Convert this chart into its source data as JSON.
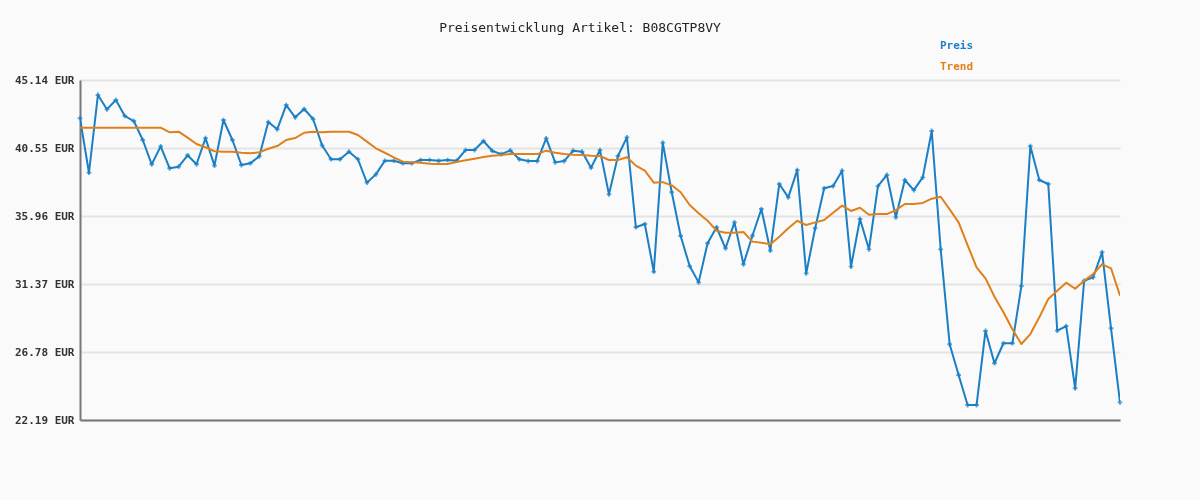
{
  "chart_data": {
    "type": "line",
    "title": "Preisentwicklung Artikel: B08CGTP8VY",
    "categories": [
      null,
      null,
      null,
      null,
      null,
      null,
      null,
      null,
      null,
      null,
      null,
      null,
      null,
      null,
      null,
      null,
      null,
      null,
      null,
      null,
      null,
      null,
      null,
      null,
      null,
      null,
      null,
      null,
      null,
      null,
      null,
      null,
      null,
      null,
      null,
      null,
      null,
      null,
      null,
      null,
      null,
      null,
      null,
      null,
      null,
      null,
      null,
      null,
      null,
      null,
      null,
      null,
      null,
      null,
      null,
      null,
      null,
      null,
      null,
      null,
      null,
      null,
      null,
      null,
      null,
      null,
      null,
      null,
      null,
      null,
      null,
      null,
      null,
      null,
      null,
      null,
      null,
      null,
      null,
      null,
      null,
      null,
      null,
      null,
      null,
      null,
      null,
      null,
      null,
      null,
      null,
      null,
      null,
      null,
      null,
      null,
      null,
      null,
      null,
      null,
      null,
      null,
      null,
      null,
      null,
      null,
      null,
      null,
      null,
      null,
      null,
      null,
      null,
      null,
      null,
      null,
      null
    ],
    "series": [
      {
        "name": "Preis",
        "color": "#1a7fc4",
        "marker": "cross",
        "values": [
          42.56,
          38.88,
          44.13,
          43.16,
          43.79,
          42.71,
          42.37,
          41.09,
          39.45,
          40.66,
          39.18,
          39.29,
          40.06,
          39.45,
          41.22,
          39.36,
          42.44,
          41.09,
          39.4,
          39.52,
          39.99,
          42.3,
          41.81,
          43.45,
          42.62,
          43.18,
          42.51,
          40.73,
          39.79,
          39.79,
          40.3,
          39.79,
          38.21,
          38.77,
          39.69,
          39.69,
          39.52,
          39.52,
          39.74,
          39.74,
          39.69,
          39.74,
          39.69,
          40.41,
          40.41,
          41.02,
          40.35,
          40.14,
          40.39,
          39.79,
          39.67,
          39.67,
          41.2,
          39.58,
          39.67,
          40.37,
          40.3,
          39.22,
          40.41,
          37.42,
          40.01,
          41.27,
          35.2,
          35.42,
          32.2,
          40.91,
          37.56,
          34.61,
          32.58,
          31.48,
          34.12,
          35.2,
          33.78,
          35.53,
          32.7,
          34.63,
          36.43,
          33.62,
          38.12,
          37.22,
          39.06,
          32.09,
          35.13,
          37.83,
          37.98,
          39.02,
          32.54,
          35.76,
          33.71,
          37.98,
          38.73,
          35.87,
          38.39,
          37.71,
          38.57,
          41.7,
          33.71,
          27.3,
          25.23,
          23.2,
          23.2,
          28.2,
          26.02,
          27.37,
          27.37,
          31.23,
          40.68,
          38.39,
          38.12,
          28.22,
          28.53,
          24.33,
          31.59,
          31.82,
          33.51,
          28.38,
          23.38
        ]
      },
      {
        "name": "Trend",
        "color": "#e0801a",
        "marker": "none",
        "values": [
          41.92,
          41.92,
          41.92,
          41.92,
          41.92,
          41.92,
          41.92,
          41.92,
          41.92,
          41.92,
          41.61,
          41.65,
          41.25,
          40.82,
          40.6,
          40.33,
          40.3,
          40.3,
          40.23,
          40.19,
          40.26,
          40.5,
          40.68,
          41.09,
          41.22,
          41.58,
          41.65,
          41.61,
          41.65,
          41.65,
          41.65,
          41.43,
          40.98,
          40.53,
          40.23,
          39.92,
          39.63,
          39.58,
          39.56,
          39.49,
          39.47,
          39.47,
          39.6,
          39.72,
          39.83,
          39.94,
          40.03,
          40.08,
          40.14,
          40.14,
          40.14,
          40.14,
          40.37,
          40.23,
          40.14,
          40.1,
          40.08,
          40.03,
          40.01,
          39.74,
          39.74,
          39.92,
          39.36,
          39.02,
          38.21,
          38.25,
          38.03,
          37.56,
          36.7,
          36.14,
          35.64,
          34.97,
          34.83,
          34.83,
          34.88,
          34.23,
          34.16,
          34.05,
          34.56,
          35.13,
          35.64,
          35.35,
          35.53,
          35.69,
          36.18,
          36.66,
          36.3,
          36.52,
          36.05,
          36.09,
          36.09,
          36.36,
          36.77,
          36.77,
          36.84,
          37.13,
          37.26,
          36.41,
          35.53,
          34.0,
          32.5,
          31.75,
          30.51,
          29.46,
          28.31,
          27.32,
          27.99,
          29.12,
          30.36,
          30.92,
          31.46,
          31.05,
          31.59,
          32.04,
          32.7,
          32.43,
          30.58
        ]
      }
    ],
    "ylim": [
      22.19,
      45.14
    ],
    "yticks": [
      {
        "value": 45.14,
        "label": "45.14 EUR"
      },
      {
        "value": 40.55,
        "label": "40.55 EUR"
      },
      {
        "value": 35.96,
        "label": "35.96 EUR"
      },
      {
        "value": 31.37,
        "label": "31.37 EUR"
      },
      {
        "value": 26.78,
        "label": "26.78 EUR"
      },
      {
        "value": 22.19,
        "label": "22.19 EUR"
      }
    ],
    "grid": "y",
    "legend": "top right",
    "line_style": "solid"
  }
}
